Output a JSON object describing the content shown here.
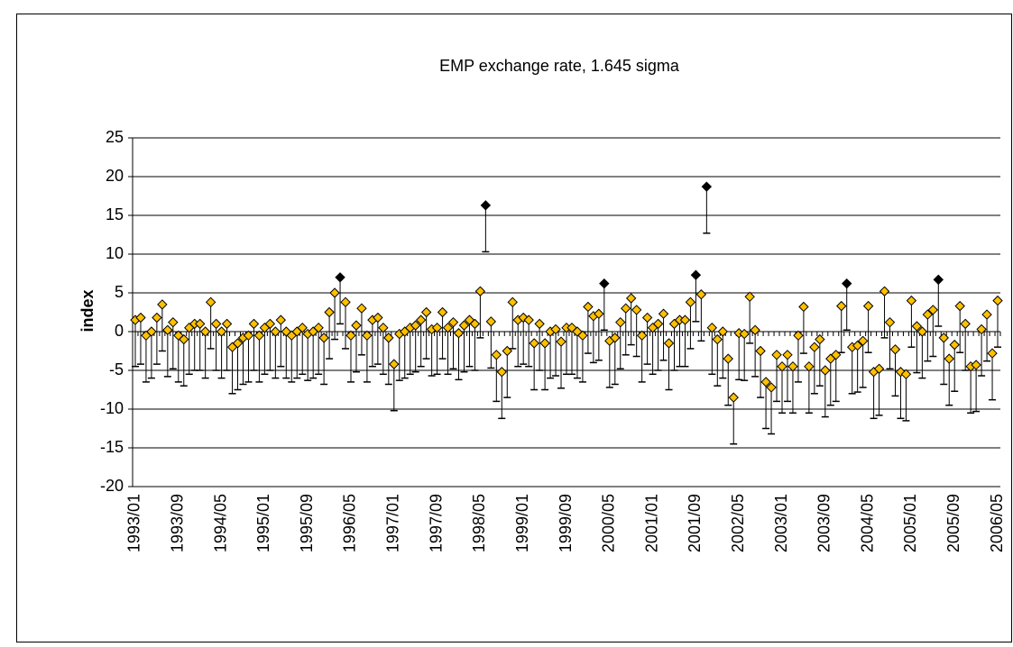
{
  "chart_data": {
    "type": "dot-error",
    "title": "EMP exchange rate, 1.645 sigma",
    "y_label": "index",
    "ylim": [
      -20,
      25
    ],
    "yticks": [
      -20,
      -15,
      -10,
      -5,
      0,
      5,
      10,
      15,
      20,
      25
    ],
    "grid": true,
    "error_minus": 6,
    "categories": [
      "1993/01",
      null,
      null,
      null,
      null,
      null,
      null,
      null,
      "1993/09",
      null,
      null,
      null,
      null,
      null,
      null,
      null,
      "1994/05",
      null,
      null,
      null,
      null,
      null,
      null,
      null,
      "1995/01",
      null,
      null,
      null,
      null,
      null,
      null,
      null,
      "1995/09",
      null,
      null,
      null,
      null,
      null,
      null,
      null,
      "1996/05",
      null,
      null,
      null,
      null,
      null,
      null,
      null,
      "1997/01",
      null,
      null,
      null,
      null,
      null,
      null,
      null,
      "1997/09",
      null,
      null,
      null,
      null,
      null,
      null,
      null,
      "1998/05",
      null,
      null,
      null,
      null,
      null,
      null,
      null,
      "1999/01",
      null,
      null,
      null,
      null,
      null,
      null,
      null,
      "1999/09",
      null,
      null,
      null,
      null,
      null,
      null,
      null,
      "2000/05",
      null,
      null,
      null,
      null,
      null,
      null,
      null,
      "2001/01",
      null,
      null,
      null,
      null,
      null,
      null,
      null,
      "2001/09",
      null,
      null,
      null,
      null,
      null,
      null,
      null,
      "2002/05",
      null,
      null,
      null,
      null,
      null,
      null,
      null,
      "2003/01",
      null,
      null,
      null,
      null,
      null,
      null,
      null,
      "2003/09",
      null,
      null,
      null,
      null,
      null,
      null,
      null,
      "2004/05",
      null,
      null,
      null,
      null,
      null,
      null,
      null,
      "2005/01",
      null,
      null,
      null,
      null,
      null,
      null,
      null,
      "2005/09",
      null,
      null,
      null,
      null,
      null,
      null,
      null,
      "2006/05"
    ],
    "series": [
      {
        "color": "#ffc000",
        "values": [
          1.5,
          1.8,
          -0.5,
          0,
          1.8,
          3.5,
          0.2,
          1.2,
          -0.5,
          -1,
          0.5,
          1,
          1,
          0,
          3.8,
          1,
          0,
          1,
          -2,
          -1.5,
          -0.8,
          -0.5,
          1,
          -0.5,
          0.5,
          1,
          0,
          1.5,
          0,
          -0.5,
          0,
          0.5,
          -0.3,
          0,
          0.5,
          -0.8,
          2.5,
          5,
          null,
          3.8,
          -0.5,
          0.8,
          3,
          -0.5,
          1.5,
          1.8,
          0.5,
          -0.8,
          -4.2,
          -0.3,
          0,
          0.5,
          0.8,
          1.5,
          2.5,
          0.3,
          0.5,
          2.5,
          0.5,
          1.2,
          -0.2,
          0.8,
          1.5,
          1,
          5.2,
          null,
          1.3,
          -3,
          -5.2,
          -2.5,
          3.8,
          1.5,
          1.8,
          1.5,
          -1.5,
          1,
          -1.5,
          0,
          0.3,
          -1.3,
          0.5,
          0.5,
          0,
          -0.5,
          3.2,
          2,
          2.3,
          null,
          -1.2,
          -0.8,
          1.2,
          3,
          4.3,
          2.8,
          -0.5,
          1.8,
          0.5,
          1,
          2.3,
          -1.5,
          1,
          1.5,
          1.5,
          3.8,
          null,
          4.8,
          null,
          0.5,
          -1,
          0,
          -3.5,
          -8.5,
          -0.2,
          -0.3,
          4.5,
          0.2,
          -2.5,
          -6.5,
          -7.2,
          -3,
          -4.5,
          -3,
          -4.5,
          -0.5,
          3.2,
          -4.5,
          -2,
          -1,
          -5,
          -3.5,
          -3,
          3.3,
          null,
          -2,
          -1.8,
          -1.2,
          3.3,
          -5.2,
          -4.8,
          5.2,
          1.2,
          -2.3,
          -5.2,
          -5.5,
          4,
          0.7,
          0,
          2.2,
          2.8,
          null,
          -0.8,
          -3.5,
          -1.7,
          3.3,
          1,
          -4.5,
          -4.3,
          0.3,
          2.2,
          -2.8,
          4
        ]
      },
      {
        "color": "#000000",
        "values": [
          null,
          null,
          null,
          null,
          null,
          null,
          null,
          null,
          null,
          null,
          null,
          null,
          null,
          null,
          null,
          null,
          null,
          null,
          null,
          null,
          null,
          null,
          null,
          null,
          null,
          null,
          null,
          null,
          null,
          null,
          null,
          null,
          null,
          null,
          null,
          null,
          null,
          null,
          7,
          null,
          null,
          null,
          null,
          null,
          null,
          null,
          null,
          null,
          null,
          null,
          null,
          null,
          null,
          null,
          null,
          null,
          null,
          null,
          null,
          null,
          null,
          null,
          null,
          null,
          null,
          16.3,
          null,
          null,
          null,
          null,
          null,
          null,
          null,
          null,
          null,
          null,
          null,
          null,
          null,
          null,
          null,
          null,
          null,
          null,
          null,
          null,
          null,
          6.2,
          null,
          null,
          null,
          null,
          null,
          null,
          null,
          null,
          null,
          null,
          null,
          null,
          null,
          null,
          null,
          null,
          7.3,
          null,
          18.7,
          null,
          null,
          null,
          null,
          null,
          null,
          null,
          null,
          null,
          null,
          null,
          null,
          null,
          null,
          null,
          null,
          null,
          null,
          null,
          null,
          null,
          null,
          null,
          null,
          null,
          6.2,
          null,
          null,
          null,
          null,
          null,
          null,
          null,
          null,
          null,
          null,
          null,
          null,
          null,
          null,
          null,
          null,
          6.7,
          null,
          null,
          null,
          null,
          null,
          null,
          null,
          null,
          null,
          null,
          null
        ]
      }
    ]
  }
}
